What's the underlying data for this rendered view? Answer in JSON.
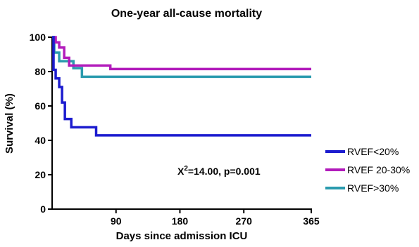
{
  "chart_data": {
    "type": "line",
    "title": "One-year all-cause mortality",
    "xlabel": "Days since admission ICU",
    "ylabel": "Survival (%)",
    "xlim": [
      0,
      365
    ],
    "ylim": [
      0,
      100
    ],
    "xticks": [
      90,
      180,
      270,
      365
    ],
    "yticks": [
      0,
      20,
      40,
      60,
      80,
      100
    ],
    "x_tick_labels": [
      "90",
      "180",
      "270",
      "365"
    ],
    "y_tick_labels": [
      "0",
      "20",
      "40",
      "60",
      "80",
      "100"
    ],
    "step": true,
    "grid": false,
    "legend_position": "right",
    "annotation": {
      "chi_symbol": "X",
      "chi_sup": "2",
      "chi_rest": "=14.00, p=0.001"
    },
    "series": [
      {
        "name": "RVEF<20%",
        "color": "#1c1ccf",
        "x": [
          0,
          2,
          5,
          10,
          14,
          18,
          22,
          27,
          62,
          365
        ],
        "y": [
          100,
          81,
          76,
          71,
          62,
          52.4,
          52.4,
          47.6,
          42.9,
          42.9
        ]
      },
      {
        "name": "RVEF 20-30%",
        "color": "#b21bbb",
        "x": [
          0,
          5,
          10,
          17,
          24,
          82,
          365
        ],
        "y": [
          100,
          97,
          94,
          88,
          83.5,
          81.5,
          81.5
        ]
      },
      {
        "name": "RVEF>30%",
        "color": "#2a9bae",
        "x": [
          0,
          3,
          10,
          30,
          42,
          365
        ],
        "y": [
          100,
          91,
          86,
          82,
          77,
          77
        ]
      }
    ]
  }
}
